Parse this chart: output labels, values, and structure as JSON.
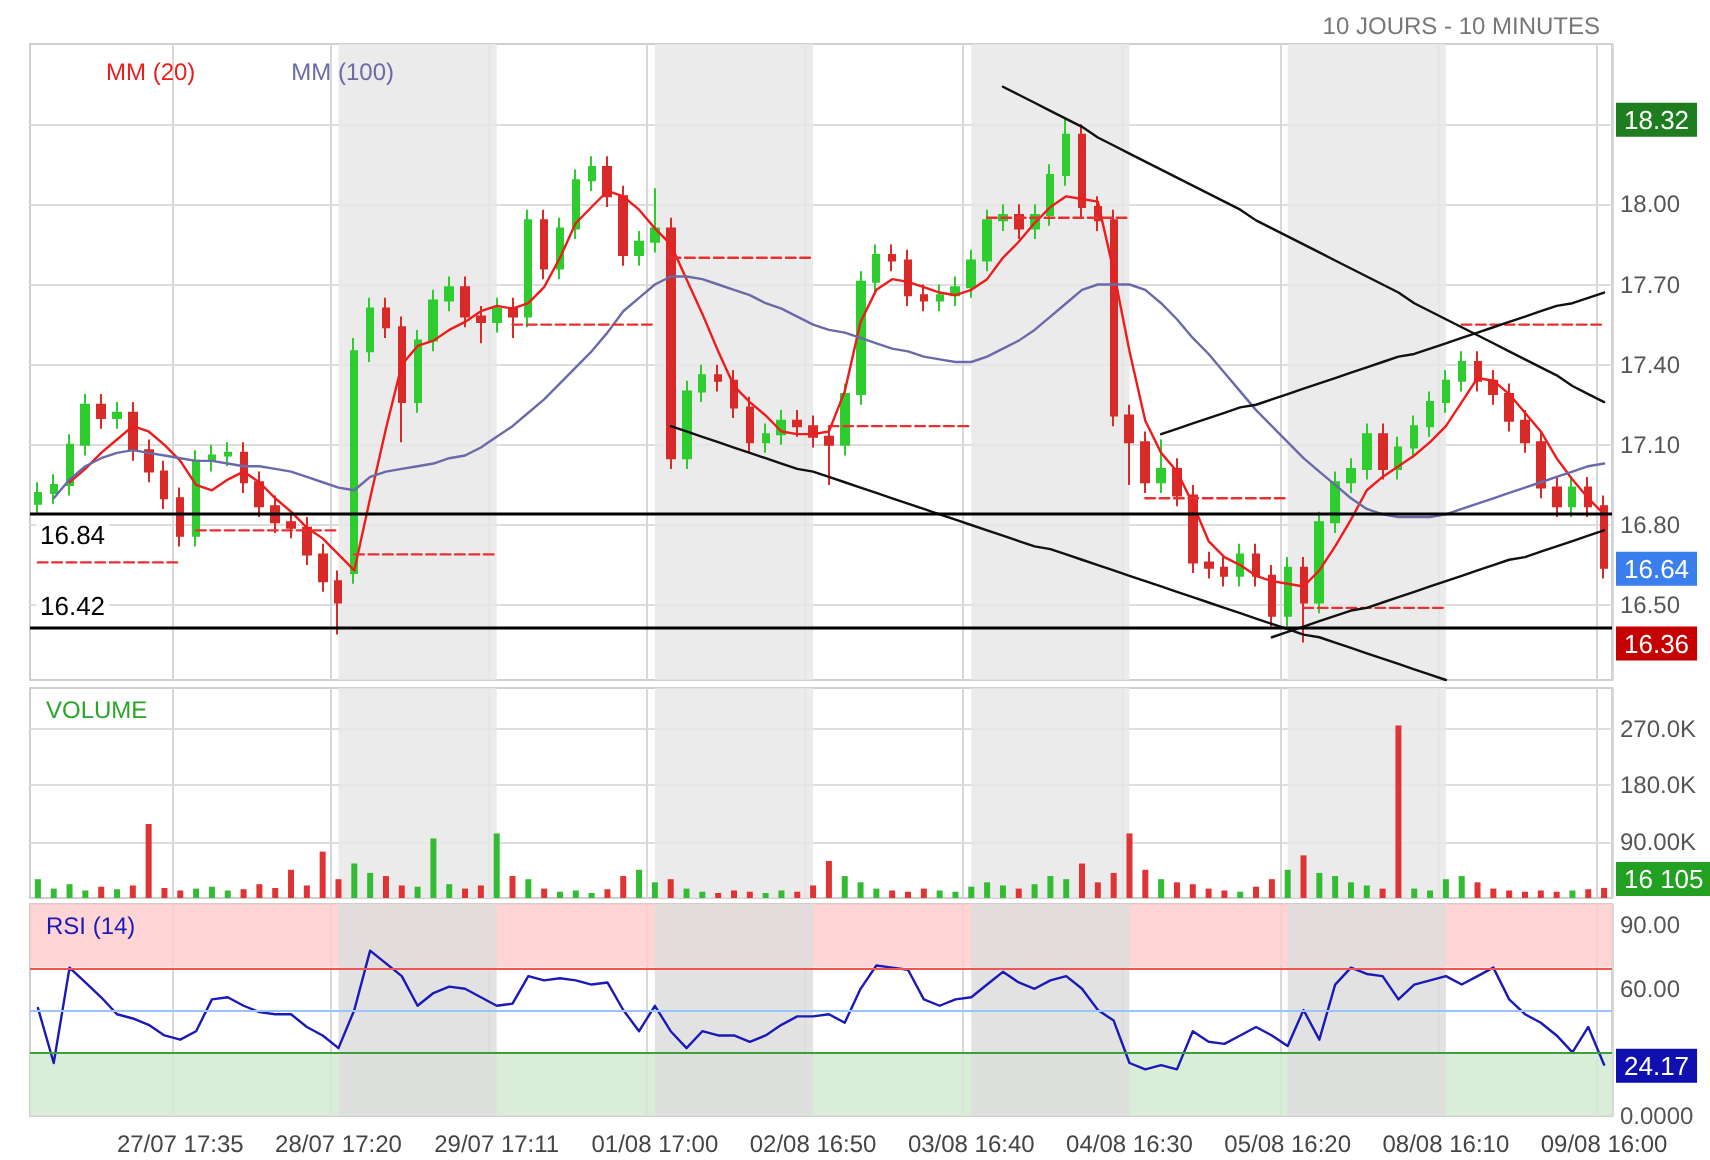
{
  "chart_data": [
    {
      "type": "candlestick",
      "subtitle": "10 JOURS - 10 MINUTES",
      "legend": "top left",
      "marker": "none",
      "grid": true,
      "tick_labels": "y",
      "categories": [
        null,
        null,
        null,
        null,
        null,
        null,
        null,
        null,
        null,
        "27/07 17:35",
        null,
        null,
        null,
        null,
        null,
        null,
        null,
        null,
        null,
        "28/07 17:20",
        null,
        null,
        null,
        null,
        null,
        null,
        null,
        null,
        null,
        "29/07 17:11",
        null,
        null,
        null,
        null,
        null,
        null,
        null,
        null,
        null,
        "01/08 17:00",
        null,
        null,
        null,
        null,
        null,
        null,
        null,
        null,
        null,
        "02/08 16:50",
        null,
        null,
        null,
        null,
        null,
        null,
        null,
        null,
        null,
        "03/08 16:40",
        null,
        null,
        null,
        null,
        null,
        null,
        null,
        null,
        null,
        "04/08 16:30",
        null,
        null,
        null,
        null,
        null,
        null,
        null,
        null,
        null,
        "05/08 16:20",
        null,
        null,
        null,
        null,
        null,
        null,
        null,
        null,
        null,
        "08/08 16:10",
        null,
        null,
        null,
        null,
        null,
        null,
        null,
        null,
        null,
        "09/08 16:00"
      ],
      "ylim": [
        16.22,
        18.6
      ],
      "yticks": [
        {
          "value": 16.5,
          "label": "16.50"
        },
        {
          "value": 16.8,
          "label": "16.80"
        },
        {
          "value": 17.1,
          "label": "17.10"
        },
        {
          "value": 17.4,
          "label": "17.40"
        },
        {
          "value": 17.7,
          "label": "17.70"
        },
        {
          "value": 18.0,
          "label": "18.00"
        },
        {
          "value": 18.3,
          "label": null
        }
      ],
      "ohlc": [
        [
          16.88,
          16.96,
          16.84,
          16.92
        ],
        [
          16.92,
          16.99,
          16.88,
          16.95
        ],
        [
          16.95,
          17.14,
          16.91,
          17.1
        ],
        [
          17.1,
          17.29,
          17.06,
          17.25
        ],
        [
          17.25,
          17.29,
          17.16,
          17.2
        ],
        [
          17.2,
          17.26,
          17.16,
          17.22
        ],
        [
          17.22,
          17.26,
          17.04,
          17.08
        ],
        [
          17.08,
          17.12,
          16.96,
          17.0
        ],
        [
          17.0,
          17.04,
          16.86,
          16.9
        ],
        [
          16.9,
          16.94,
          16.72,
          16.76
        ],
        [
          16.76,
          17.08,
          16.72,
          17.04
        ],
        [
          17.04,
          17.1,
          17.0,
          17.06
        ],
        [
          17.06,
          17.11,
          17.02,
          17.07
        ],
        [
          17.07,
          17.11,
          16.92,
          16.96
        ],
        [
          16.96,
          17.0,
          16.83,
          16.87
        ],
        [
          16.87,
          16.91,
          16.77,
          16.81
        ],
        [
          16.81,
          16.85,
          16.75,
          16.79
        ],
        [
          16.79,
          16.83,
          16.65,
          16.69
        ],
        [
          16.69,
          16.73,
          16.55,
          16.59
        ],
        [
          16.59,
          16.63,
          16.39,
          16.51
        ],
        [
          16.62,
          17.5,
          16.58,
          17.45
        ],
        [
          17.45,
          17.65,
          17.41,
          17.61
        ],
        [
          17.61,
          17.65,
          17.5,
          17.54
        ],
        [
          17.54,
          17.58,
          17.11,
          17.26
        ],
        [
          17.26,
          17.53,
          17.22,
          17.49
        ],
        [
          17.49,
          17.68,
          17.45,
          17.64
        ],
        [
          17.64,
          17.73,
          17.6,
          17.69
        ],
        [
          17.69,
          17.73,
          17.54,
          17.58
        ],
        [
          17.58,
          17.62,
          17.48,
          17.56
        ],
        [
          17.56,
          17.65,
          17.52,
          17.61
        ],
        [
          17.61,
          17.65,
          17.5,
          17.58
        ],
        [
          17.58,
          17.98,
          17.54,
          17.94
        ],
        [
          17.94,
          17.98,
          17.72,
          17.76
        ],
        [
          17.76,
          17.95,
          17.72,
          17.91
        ],
        [
          17.91,
          18.13,
          17.87,
          18.09
        ],
        [
          18.09,
          18.18,
          18.05,
          18.14
        ],
        [
          18.14,
          18.18,
          17.99,
          18.03
        ],
        [
          18.03,
          18.07,
          17.77,
          17.81
        ],
        [
          17.81,
          17.9,
          17.77,
          17.86
        ],
        [
          17.86,
          18.06,
          17.82,
          17.91
        ],
        [
          17.91,
          17.95,
          17.01,
          17.05
        ],
        [
          17.05,
          17.34,
          17.01,
          17.3
        ],
        [
          17.3,
          17.4,
          17.26,
          17.36
        ],
        [
          17.36,
          17.4,
          17.3,
          17.34
        ],
        [
          17.34,
          17.38,
          17.2,
          17.24
        ],
        [
          17.24,
          17.28,
          17.07,
          17.11
        ],
        [
          17.11,
          17.18,
          17.07,
          17.14
        ],
        [
          17.14,
          17.23,
          17.1,
          17.19
        ],
        [
          17.19,
          17.23,
          17.13,
          17.17
        ],
        [
          17.17,
          17.21,
          17.09,
          17.13
        ],
        [
          17.13,
          17.17,
          16.95,
          17.1
        ],
        [
          17.1,
          17.33,
          17.06,
          17.29
        ],
        [
          17.29,
          17.75,
          17.25,
          17.71
        ],
        [
          17.71,
          17.85,
          17.67,
          17.81
        ],
        [
          17.81,
          17.85,
          17.75,
          17.79
        ],
        [
          17.79,
          17.83,
          17.62,
          17.66
        ],
        [
          17.66,
          17.7,
          17.6,
          17.64
        ],
        [
          17.64,
          17.7,
          17.6,
          17.66
        ],
        [
          17.66,
          17.73,
          17.62,
          17.69
        ],
        [
          17.69,
          17.83,
          17.65,
          17.79
        ],
        [
          17.79,
          17.98,
          17.75,
          17.94
        ],
        [
          17.94,
          18.0,
          17.9,
          17.96
        ],
        [
          17.96,
          18.0,
          17.87,
          17.91
        ],
        [
          17.91,
          18.0,
          17.87,
          17.96
        ],
        [
          17.96,
          18.15,
          17.92,
          18.11
        ],
        [
          18.11,
          18.32,
          18.07,
          18.26
        ],
        [
          18.26,
          18.3,
          17.95,
          17.99
        ],
        [
          17.99,
          18.03,
          17.9,
          17.94
        ],
        [
          17.94,
          17.98,
          17.17,
          17.21
        ],
        [
          17.21,
          17.25,
          16.95,
          17.11
        ],
        [
          17.11,
          17.15,
          16.92,
          16.96
        ],
        [
          16.96,
          17.12,
          16.92,
          17.01
        ],
        [
          17.01,
          17.05,
          16.87,
          16.91
        ],
        [
          16.91,
          16.95,
          16.62,
          16.66
        ],
        [
          16.66,
          16.7,
          16.6,
          16.64
        ],
        [
          16.64,
          16.68,
          16.57,
          16.61
        ],
        [
          16.61,
          16.73,
          16.57,
          16.69
        ],
        [
          16.69,
          16.73,
          16.57,
          16.61
        ],
        [
          16.61,
          16.65,
          16.42,
          16.46
        ],
        [
          16.46,
          16.68,
          16.42,
          16.64
        ],
        [
          16.64,
          16.68,
          16.36,
          16.51
        ],
        [
          16.51,
          16.85,
          16.47,
          16.81
        ],
        [
          16.81,
          17.0,
          16.77,
          16.96
        ],
        [
          16.96,
          17.05,
          16.92,
          17.01
        ],
        [
          17.01,
          17.18,
          16.97,
          17.14
        ],
        [
          17.14,
          17.18,
          16.97,
          17.01
        ],
        [
          17.01,
          17.13,
          16.97,
          17.09
        ],
        [
          17.09,
          17.21,
          17.05,
          17.17
        ],
        [
          17.17,
          17.3,
          17.13,
          17.26
        ],
        [
          17.26,
          17.38,
          17.22,
          17.34
        ],
        [
          17.34,
          17.45,
          17.3,
          17.41
        ],
        [
          17.41,
          17.45,
          17.3,
          17.34
        ],
        [
          17.34,
          17.38,
          17.25,
          17.29
        ],
        [
          17.29,
          17.33,
          17.15,
          17.19
        ],
        [
          17.19,
          17.23,
          17.07,
          17.11
        ],
        [
          17.11,
          17.15,
          16.9,
          16.94
        ],
        [
          16.94,
          16.98,
          16.83,
          16.87
        ],
        [
          16.87,
          16.98,
          16.83,
          16.94
        ],
        [
          16.94,
          16.98,
          16.83,
          16.87
        ],
        [
          16.87,
          16.91,
          16.6,
          16.64
        ]
      ],
      "series": [
        {
          "type": "line",
          "name": "MM (20)",
          "color": "#ee1c1c",
          "values": [
            null,
            null,
            16.96,
            17.01,
            17.07,
            17.12,
            17.17,
            17.15,
            17.1,
            17.04,
            16.95,
            16.93,
            16.97,
            17.0,
            16.96,
            16.9,
            16.85,
            16.79,
            16.75,
            16.69,
            16.63,
            16.9,
            17.16,
            17.4,
            17.47,
            17.49,
            17.53,
            17.56,
            17.6,
            17.62,
            17.61,
            17.63,
            17.69,
            17.8,
            17.93,
            17.99,
            18.05,
            18.03,
            17.98,
            17.91,
            17.85,
            17.72,
            17.59,
            17.45,
            17.32,
            17.26,
            17.21,
            17.15,
            17.14,
            17.14,
            17.15,
            17.3,
            17.56,
            17.68,
            17.72,
            17.71,
            17.69,
            17.67,
            17.66,
            17.68,
            17.72,
            17.8,
            17.86,
            17.93,
            17.99,
            18.03,
            18.02,
            18.01,
            17.75,
            17.45,
            17.19,
            17.07,
            17.0,
            16.88,
            16.74,
            16.68,
            16.65,
            16.61,
            16.59,
            16.58,
            16.57,
            16.63,
            16.72,
            16.82,
            16.93,
            16.98,
            17.02,
            17.06,
            17.11,
            17.17,
            17.26,
            17.35,
            17.34,
            17.29,
            17.22,
            17.15,
            17.05,
            16.97,
            16.9,
            16.84
          ]
        },
        {
          "type": "line",
          "name": "MM (100)",
          "color": "#6a6aa8",
          "values": [
            null,
            16.9,
            16.97,
            17.02,
            17.05,
            17.07,
            17.08,
            17.07,
            17.06,
            17.05,
            17.04,
            17.04,
            17.03,
            17.02,
            17.02,
            17.01,
            17.0,
            16.98,
            16.96,
            16.94,
            16.93,
            16.98,
            17.0,
            17.01,
            17.02,
            17.03,
            17.05,
            17.06,
            17.09,
            17.13,
            17.17,
            17.22,
            17.27,
            17.33,
            17.39,
            17.45,
            17.52,
            17.6,
            17.65,
            17.7,
            17.73,
            17.73,
            17.72,
            17.7,
            17.68,
            17.66,
            17.63,
            17.61,
            17.58,
            17.55,
            17.53,
            17.52,
            17.5,
            17.48,
            17.46,
            17.45,
            17.43,
            17.42,
            17.41,
            17.41,
            17.43,
            17.46,
            17.49,
            17.53,
            17.58,
            17.63,
            17.68,
            17.7,
            17.7,
            17.7,
            17.68,
            17.63,
            17.57,
            17.5,
            17.44,
            17.37,
            17.3,
            17.23,
            17.17,
            17.11,
            17.05,
            17.0,
            16.95,
            16.9,
            16.86,
            16.84,
            16.83,
            16.83,
            16.83,
            16.84,
            16.86,
            16.88,
            16.9,
            16.92,
            16.94,
            16.96,
            16.98,
            17.0,
            17.02,
            17.03
          ]
        },
        {
          "type": "line",
          "color": "#e83030",
          "line_style": "dashed",
          "values": [
            16.66,
            16.66,
            16.66,
            16.66,
            16.66,
            16.66,
            16.66,
            16.66,
            16.66,
            16.66,
            null,
            null,
            null,
            null,
            null,
            null,
            null,
            null,
            null,
            null,
            16.69,
            16.69,
            16.69,
            16.69,
            16.69,
            16.69,
            16.69,
            16.69,
            16.69,
            16.69,
            null,
            null,
            null,
            null,
            null,
            null,
            null,
            null,
            null,
            null,
            17.8,
            17.8,
            17.8,
            17.8,
            17.8,
            17.8,
            17.8,
            17.8,
            17.8,
            17.8,
            null,
            null,
            null,
            null,
            null,
            null,
            null,
            null,
            null,
            null,
            17.95,
            17.95,
            17.95,
            17.95,
            17.95,
            17.95,
            17.95,
            17.95,
            17.95,
            17.95,
            null,
            null,
            null,
            null,
            null,
            null,
            null,
            null,
            null,
            null,
            16.49,
            16.49,
            16.49,
            16.49,
            16.49,
            16.49,
            16.49,
            16.49,
            16.49,
            16.49,
            null,
            null,
            null,
            null,
            null,
            null,
            null,
            null,
            null,
            null
          ]
        },
        {
          "type": "line",
          "color": "#e83030",
          "line_style": "dashed",
          "values": [
            null,
            null,
            null,
            null,
            null,
            null,
            null,
            null,
            null,
            null,
            16.78,
            16.78,
            16.78,
            16.78,
            16.78,
            16.78,
            16.78,
            16.78,
            16.78,
            16.78,
            null,
            null,
            null,
            null,
            null,
            null,
            null,
            null,
            null,
            null,
            17.55,
            17.55,
            17.55,
            17.55,
            17.55,
            17.55,
            17.55,
            17.55,
            17.55,
            17.55,
            null,
            null,
            null,
            null,
            null,
            null,
            null,
            null,
            null,
            null,
            17.17,
            17.17,
            17.17,
            17.17,
            17.17,
            17.17,
            17.17,
            17.17,
            17.17,
            17.17,
            null,
            null,
            null,
            null,
            null,
            null,
            null,
            null,
            null,
            null,
            16.9,
            16.9,
            16.9,
            16.9,
            16.9,
            16.9,
            16.9,
            16.9,
            16.9,
            16.9,
            null,
            null,
            null,
            null,
            null,
            null,
            null,
            null,
            null,
            null,
            17.55,
            17.55,
            17.55,
            17.55,
            17.55,
            17.55,
            17.55,
            17.55,
            17.55,
            17.55
          ]
        },
        {
          "type": "line",
          "color": "#111111",
          "values": [
            null,
            null,
            null,
            null,
            null,
            null,
            null,
            null,
            null,
            null,
            null,
            null,
            null,
            null,
            null,
            null,
            null,
            null,
            null,
            null,
            null,
            null,
            null,
            null,
            null,
            null,
            null,
            null,
            null,
            null,
            null,
            null,
            null,
            null,
            null,
            null,
            null,
            null,
            null,
            null,
            null,
            null,
            null,
            null,
            null,
            null,
            null,
            null,
            null,
            null,
            null,
            null,
            null,
            null,
            null,
            null,
            null,
            null,
            null,
            null,
            null,
            18.44,
            18.41,
            18.38,
            18.35,
            18.32,
            18.29,
            18.25,
            18.22,
            18.19,
            18.16,
            18.13,
            18.1,
            18.07,
            18.04,
            18.01,
            17.98,
            17.94,
            17.91,
            17.88,
            17.85,
            17.82,
            17.79,
            17.76,
            17.73,
            17.7,
            17.67,
            17.63,
            17.6,
            17.57,
            17.54,
            17.51,
            17.48,
            17.45,
            17.42,
            17.39,
            17.36,
            17.32,
            17.29,
            17.26
          ]
        },
        {
          "type": "line",
          "color": "#111111",
          "values": [
            null,
            null,
            null,
            null,
            null,
            null,
            null,
            null,
            null,
            null,
            null,
            null,
            null,
            null,
            null,
            null,
            null,
            null,
            null,
            null,
            null,
            null,
            null,
            null,
            null,
            null,
            null,
            null,
            null,
            null,
            null,
            null,
            null,
            null,
            null,
            null,
            null,
            null,
            null,
            null,
            17.17,
            17.15,
            17.13,
            17.11,
            17.09,
            17.07,
            17.05,
            17.03,
            17.01,
            17.0,
            16.98,
            16.96,
            16.94,
            16.92,
            16.9,
            16.88,
            16.86,
            16.84,
            16.82,
            16.8,
            16.78,
            16.76,
            16.74,
            16.72,
            16.71,
            16.69,
            16.67,
            16.65,
            16.63,
            16.61,
            16.59,
            16.57,
            16.55,
            16.53,
            16.51,
            16.49,
            16.47,
            16.45,
            16.43,
            16.41,
            16.39,
            16.38,
            16.36,
            16.34,
            16.32,
            16.3,
            16.28,
            16.26,
            16.24,
            16.22,
            null,
            null,
            null,
            null,
            null,
            null,
            null,
            null,
            null,
            null
          ]
        },
        {
          "type": "line",
          "color": "#111111",
          "values": [
            null,
            null,
            null,
            null,
            null,
            null,
            null,
            null,
            null,
            null,
            null,
            null,
            null,
            null,
            null,
            null,
            null,
            null,
            null,
            null,
            null,
            null,
            null,
            null,
            null,
            null,
            null,
            null,
            null,
            null,
            null,
            null,
            null,
            null,
            null,
            null,
            null,
            null,
            null,
            null,
            null,
            null,
            null,
            null,
            null,
            null,
            null,
            null,
            null,
            null,
            null,
            null,
            null,
            null,
            null,
            null,
            null,
            null,
            null,
            null,
            null,
            null,
            null,
            null,
            null,
            null,
            null,
            null,
            null,
            null,
            null,
            17.14,
            17.16,
            17.18,
            17.2,
            17.22,
            17.24,
            17.25,
            17.27,
            17.29,
            17.31,
            17.33,
            17.35,
            17.37,
            17.39,
            17.41,
            17.43,
            17.44,
            17.46,
            17.48,
            17.5,
            17.52,
            17.54,
            17.56,
            17.58,
            17.6,
            17.62,
            17.63,
            17.65,
            17.67
          ]
        },
        {
          "type": "line",
          "color": "#111111",
          "values": [
            null,
            null,
            null,
            null,
            null,
            null,
            null,
            null,
            null,
            null,
            null,
            null,
            null,
            null,
            null,
            null,
            null,
            null,
            null,
            null,
            null,
            null,
            null,
            null,
            null,
            null,
            null,
            null,
            null,
            null,
            null,
            null,
            null,
            null,
            null,
            null,
            null,
            null,
            null,
            null,
            null,
            null,
            null,
            null,
            null,
            null,
            null,
            null,
            null,
            null,
            null,
            null,
            null,
            null,
            null,
            null,
            null,
            null,
            null,
            null,
            null,
            null,
            null,
            null,
            null,
            null,
            null,
            null,
            null,
            null,
            null,
            null,
            null,
            null,
            null,
            null,
            null,
            null,
            16.38,
            16.4,
            16.42,
            16.44,
            16.46,
            16.48,
            16.49,
            16.51,
            16.53,
            16.55,
            16.57,
            16.59,
            16.61,
            16.63,
            16.65,
            16.67,
            16.68,
            16.7,
            16.72,
            16.74,
            16.76,
            16.78
          ]
        }
      ],
      "ref_lines": [
        {
          "axis": "y",
          "value": 16.42,
          "label": "16.42",
          "color": "#000000",
          "line_style": "solid"
        },
        {
          "axis": "y",
          "value": 16.84,
          "label": "16.84",
          "color": "#000000",
          "line_style": "solid"
        }
      ],
      "annotations": [
        {
          "text": "18.32",
          "y": 18.32
        },
        {
          "text": "16.64",
          "y": 16.64
        },
        {
          "text": "16.36",
          "y": 16.36
        }
      ],
      "bands": [
        {
          "axis": "x",
          "from": "28/07 17:20",
          "to": "29/07 17:11",
          "color": "#e8e8e8"
        },
        {
          "axis": "x",
          "from": "01/08 17:00",
          "to": "02/08 16:50",
          "color": "#e8e8e8"
        },
        {
          "axis": "x",
          "from": "03/08 16:40",
          "to": "04/08 16:30",
          "color": "#e8e8e8"
        },
        {
          "axis": "x",
          "from": "05/08 16:20",
          "to": "08/08 16:10",
          "color": "#e8e8e8"
        }
      ]
    },
    {
      "type": "bar",
      "title": "VOLUME",
      "grid": true,
      "tick_labels": "y",
      "categories": [
        null,
        null,
        null,
        null,
        null,
        null,
        null,
        null,
        null,
        "27/07 17:35",
        null,
        null,
        null,
        null,
        null,
        null,
        null,
        null,
        null,
        "28/07 17:20",
        null,
        null,
        null,
        null,
        null,
        null,
        null,
        null,
        null,
        "29/07 17:11",
        null,
        null,
        null,
        null,
        null,
        null,
        null,
        null,
        null,
        "01/08 17:00",
        null,
        null,
        null,
        null,
        null,
        null,
        null,
        null,
        null,
        "02/08 16:50",
        null,
        null,
        null,
        null,
        null,
        null,
        null,
        null,
        null,
        "03/08 16:40",
        null,
        null,
        null,
        null,
        null,
        null,
        null,
        null,
        null,
        "04/08 16:30",
        null,
        null,
        null,
        null,
        null,
        null,
        null,
        null,
        null,
        "05/08 16:20",
        null,
        null,
        null,
        null,
        null,
        null,
        null,
        null,
        null,
        "08/08 16:10",
        null,
        null,
        null,
        null,
        null,
        null,
        null,
        null,
        null,
        "09/08 16:00"
      ],
      "ylim": [
        0,
        335000
      ],
      "yticks": [
        {
          "value": 90000,
          "label": "90.00K"
        },
        {
          "value": 180000,
          "label": "180.0K"
        },
        {
          "value": 270000,
          "label": "270.0K"
        }
      ],
      "values": [
        30000,
        15000,
        22000,
        12000,
        18000,
        14000,
        20000,
        118000,
        16000,
        12000,
        15000,
        18000,
        12000,
        14000,
        22000,
        16000,
        45000,
        20000,
        74000,
        30000,
        55000,
        40000,
        35000,
        20000,
        18000,
        95000,
        22000,
        15000,
        20000,
        103000,
        35000,
        30000,
        15000,
        10000,
        12000,
        8000,
        14000,
        35000,
        45000,
        25000,
        30000,
        15000,
        10000,
        8000,
        12000,
        10000,
        8000,
        12000,
        10000,
        20000,
        59000,
        35000,
        25000,
        15000,
        12000,
        10000,
        15000,
        12000,
        10000,
        18000,
        25000,
        20000,
        15000,
        22000,
        35000,
        30000,
        55000,
        25000,
        40000,
        103000,
        45000,
        30000,
        25000,
        22000,
        15000,
        12000,
        10000,
        18000,
        30000,
        45000,
        68000,
        40000,
        35000,
        25000,
        20000,
        15000,
        275000,
        15000,
        12000,
        30000,
        35000,
        25000,
        15000,
        12000,
        10000,
        12000,
        10000,
        12000,
        14000,
        16105
      ],
      "colors": [
        "#33bb33",
        "#33bb33",
        "#33bb33",
        "#33bb33",
        "#e03333",
        "#33bb33",
        "#e03333",
        "#e03333",
        "#e03333",
        "#e03333",
        "#33bb33",
        "#33bb33",
        "#33bb33",
        "#e03333",
        "#e03333",
        "#e03333",
        "#e03333",
        "#e03333",
        "#e03333",
        "#e03333",
        "#33bb33",
        "#33bb33",
        "#e03333",
        "#e03333",
        "#33bb33",
        "#33bb33",
        "#33bb33",
        "#e03333",
        "#e03333",
        "#33bb33",
        "#e03333",
        "#33bb33",
        "#e03333",
        "#33bb33",
        "#33bb33",
        "#33bb33",
        "#e03333",
        "#e03333",
        "#33bb33",
        "#33bb33",
        "#e03333",
        "#33bb33",
        "#33bb33",
        "#e03333",
        "#e03333",
        "#e03333",
        "#33bb33",
        "#33bb33",
        "#e03333",
        "#e03333",
        "#e03333",
        "#33bb33",
        "#33bb33",
        "#33bb33",
        "#e03333",
        "#e03333",
        "#e03333",
        "#33bb33",
        "#33bb33",
        "#33bb33",
        "#33bb33",
        "#33bb33",
        "#e03333",
        "#33bb33",
        "#33bb33",
        "#33bb33",
        "#e03333",
        "#e03333",
        "#e03333",
        "#e03333",
        "#e03333",
        "#33bb33",
        "#e03333",
        "#e03333",
        "#e03333",
        "#e03333",
        "#33bb33",
        "#e03333",
        "#e03333",
        "#33bb33",
        "#e03333",
        "#33bb33",
        "#33bb33",
        "#33bb33",
        "#33bb33",
        "#e03333",
        "#e03333",
        "#33bb33",
        "#33bb33",
        "#33bb33",
        "#33bb33",
        "#e03333",
        "#e03333",
        "#e03333",
        "#e03333",
        "#e03333",
        "#e03333",
        "#33bb33",
        "#e03333",
        "#e03333"
      ],
      "annotations": [
        "16 105"
      ],
      "bands": [
        {
          "axis": "x",
          "from": "28/07 17:20",
          "to": "29/07 17:11",
          "color": "#e8e8e8"
        },
        {
          "axis": "x",
          "from": "01/08 17:00",
          "to": "02/08 16:50",
          "color": "#e8e8e8"
        },
        {
          "axis": "x",
          "from": "03/08 16:40",
          "to": "04/08 16:30",
          "color": "#e8e8e8"
        },
        {
          "axis": "x",
          "from": "05/08 16:20",
          "to": "08/08 16:10",
          "color": "#e8e8e8"
        }
      ]
    },
    {
      "type": "line",
      "title": "RSI (14)",
      "grid": "x",
      "marker": "none",
      "categories": [
        null,
        null,
        null,
        null,
        null,
        null,
        null,
        null,
        null,
        "27/07 17:35",
        null,
        null,
        null,
        null,
        null,
        null,
        null,
        null,
        null,
        "28/07 17:20",
        null,
        null,
        null,
        null,
        null,
        null,
        null,
        null,
        null,
        "29/07 17:11",
        null,
        null,
        null,
        null,
        null,
        null,
        null,
        null,
        null,
        "01/08 17:00",
        null,
        null,
        null,
        null,
        null,
        null,
        null,
        null,
        null,
        "02/08 16:50",
        null,
        null,
        null,
        null,
        null,
        null,
        null,
        null,
        null,
        "03/08 16:40",
        null,
        null,
        null,
        null,
        null,
        null,
        null,
        null,
        null,
        "04/08 16:30",
        null,
        null,
        null,
        null,
        null,
        null,
        null,
        null,
        null,
        "05/08 16:20",
        null,
        null,
        null,
        null,
        null,
        null,
        null,
        null,
        null,
        "08/08 16:10",
        null,
        null,
        null,
        null,
        null,
        null,
        null,
        null,
        null,
        "09/08 16:00"
      ],
      "ylim": [
        0,
        100
      ],
      "yticks": [
        {
          "value": 0,
          "label": "0.0000"
        },
        {
          "value": 60,
          "label": "60.00"
        },
        {
          "value": 90,
          "label": "90.00"
        }
      ],
      "series": [
        {
          "color": "#1a1ab8",
          "values": [
            51,
            25,
            70,
            63,
            56,
            48,
            46,
            43,
            38,
            36,
            40,
            55,
            56,
            52,
            49,
            48,
            48,
            42,
            38,
            32,
            50,
            78,
            72,
            66,
            52,
            58,
            61,
            60,
            56,
            52,
            53,
            66,
            64,
            65,
            64,
            62,
            63,
            50,
            40,
            52,
            40,
            32,
            40,
            38,
            38,
            35,
            38,
            43,
            47,
            47,
            48,
            44,
            60,
            71,
            70,
            69,
            55,
            52,
            55,
            56,
            62,
            68,
            63,
            60,
            64,
            66,
            60,
            50,
            45,
            25,
            22,
            24,
            22,
            40,
            35,
            34,
            38,
            42,
            38,
            33,
            50,
            36,
            62,
            70,
            67,
            66,
            55,
            62,
            64,
            66,
            62,
            66,
            70,
            55,
            48,
            44,
            38,
            30,
            42,
            24.17
          ]
        }
      ],
      "ref_lines": [
        {
          "axis": "y",
          "value": 70,
          "color": "#ee5555",
          "line_style": "solid"
        },
        {
          "axis": "y",
          "value": 50,
          "color": "#99c4ff",
          "line_style": "solid"
        },
        {
          "axis": "y",
          "value": 30,
          "color": "#3e9e3e",
          "line_style": "solid"
        }
      ],
      "annotations": [
        {
          "text": "24.17",
          "y": 24.17
        }
      ],
      "bands": [
        {
          "axis": "y",
          "from": 70,
          "to": 100,
          "color": "#ffcccc"
        },
        {
          "axis": "y",
          "from": 0,
          "to": 30,
          "color": "#d2ead2"
        },
        {
          "axis": "x",
          "from": "28/07 17:20",
          "to": "29/07 17:11",
          "color": "#dddddd"
        },
        {
          "axis": "x",
          "from": "01/08 17:00",
          "to": "02/08 16:50",
          "color": "#dddddd"
        },
        {
          "axis": "x",
          "from": "03/08 16:40",
          "to": "04/08 16:30",
          "color": "#dddddd"
        },
        {
          "axis": "x",
          "from": "05/08 16:20",
          "to": "08/08 16:10",
          "color": "#dddddd"
        }
      ]
    }
  ]
}
